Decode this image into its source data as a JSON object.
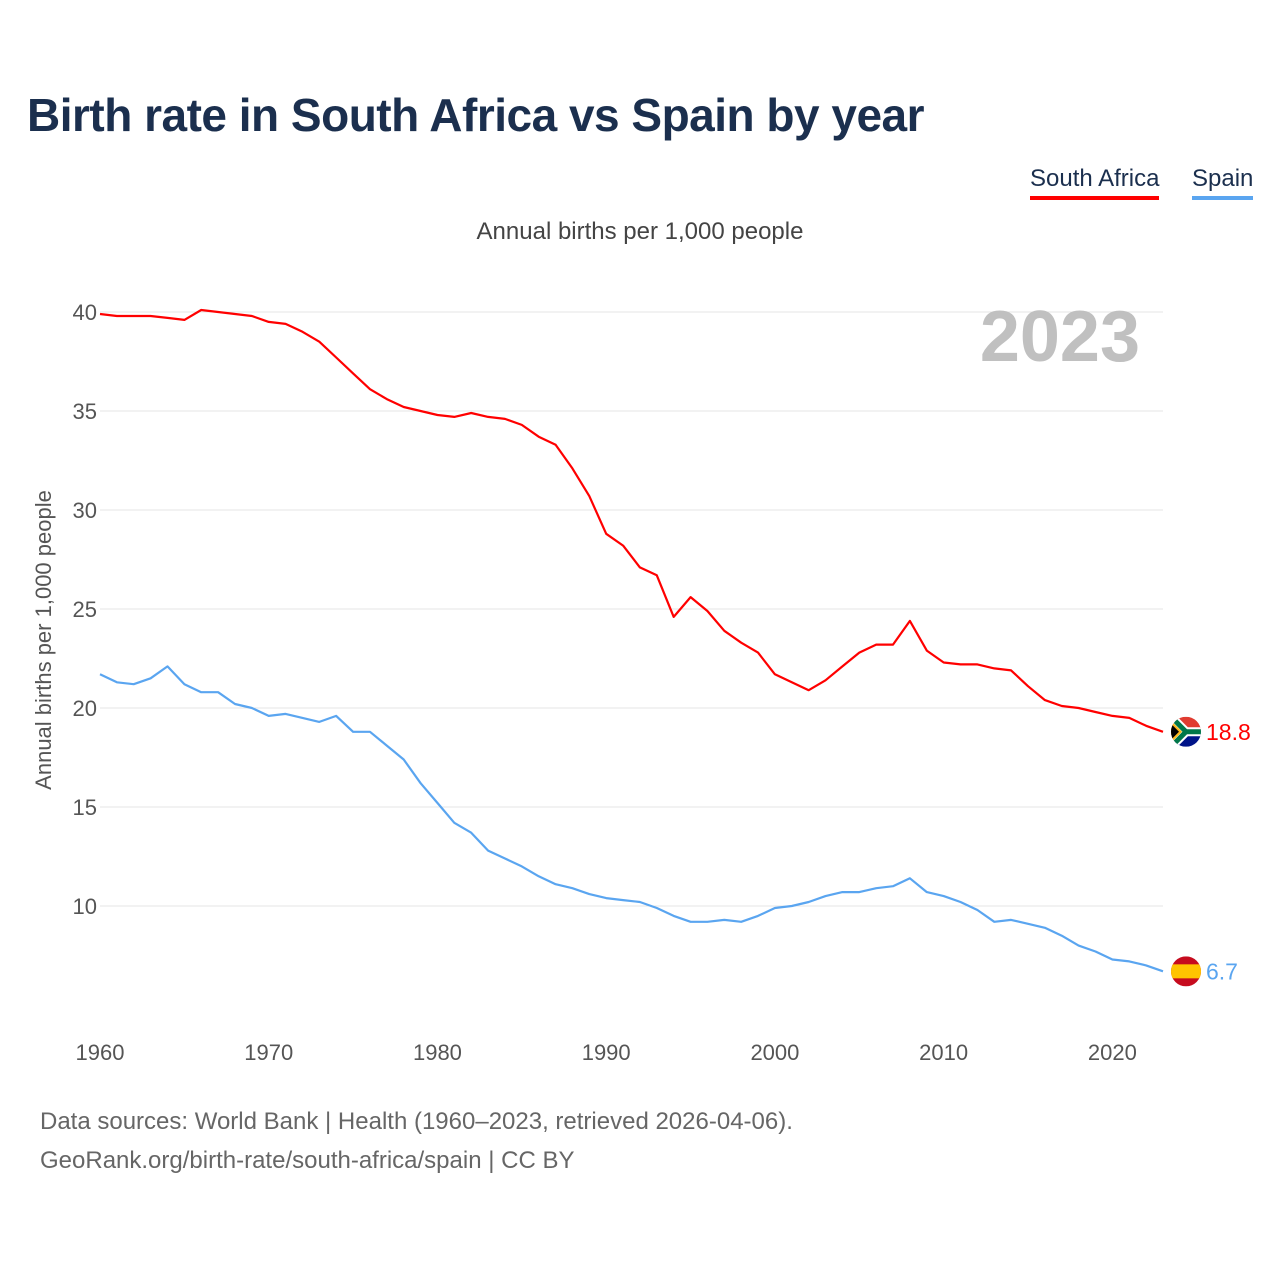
{
  "title": "Birth rate in South Africa vs Spain by year",
  "legend": [
    {
      "label": "South Africa",
      "color": "#ff0000"
    },
    {
      "label": "Spain",
      "color": "#5aa5f0"
    }
  ],
  "subtitle": "Annual births per 1,000 people",
  "footer": {
    "line1": "Data sources: World Bank | Health (1960–2023, retrieved 2026-04-06).",
    "line2": "GeoRank.org/birth-rate/south-africa/spain | CC BY"
  },
  "chart_data": {
    "type": "line",
    "title": "Birth rate in South Africa vs Spain by year",
    "ylabel": "Annual births per 1,000 people",
    "xlabel": "",
    "year_label": "2023",
    "xlim": [
      1960,
      2023
    ],
    "ylim": [
      5,
      42
    ],
    "xticks": [
      1960,
      1970,
      1980,
      1990,
      2000,
      2010,
      2020
    ],
    "yticks": [
      10,
      15,
      20,
      25,
      30,
      35,
      40
    ],
    "grid": true,
    "legend_position": "top-right",
    "x": [
      1960,
      1961,
      1962,
      1963,
      1964,
      1965,
      1966,
      1967,
      1968,
      1969,
      1970,
      1971,
      1972,
      1973,
      1974,
      1975,
      1976,
      1977,
      1978,
      1979,
      1980,
      1981,
      1982,
      1983,
      1984,
      1985,
      1986,
      1987,
      1988,
      1989,
      1990,
      1991,
      1992,
      1993,
      1994,
      1995,
      1996,
      1997,
      1998,
      1999,
      2000,
      2001,
      2002,
      2003,
      2004,
      2005,
      2006,
      2007,
      2008,
      2009,
      2010,
      2011,
      2012,
      2013,
      2014,
      2015,
      2016,
      2017,
      2018,
      2019,
      2020,
      2021,
      2022,
      2023
    ],
    "series": [
      {
        "name": "South Africa",
        "color": "#ff0000",
        "end_label": "18.8",
        "flag": "south-africa",
        "values": [
          39.9,
          39.8,
          39.8,
          39.8,
          39.7,
          39.6,
          40.1,
          40.0,
          39.9,
          39.8,
          39.5,
          39.4,
          39.0,
          38.5,
          37.7,
          36.9,
          36.1,
          35.6,
          35.2,
          35.0,
          34.8,
          34.7,
          34.9,
          34.7,
          34.6,
          34.3,
          33.7,
          33.3,
          32.1,
          30.7,
          28.8,
          28.2,
          27.1,
          26.7,
          24.6,
          25.6,
          24.9,
          23.9,
          23.3,
          22.8,
          21.7,
          21.3,
          20.9,
          21.4,
          22.1,
          22.8,
          23.2,
          23.2,
          24.4,
          22.9,
          22.3,
          22.2,
          22.2,
          22.0,
          21.9,
          21.1,
          20.4,
          20.1,
          20.0,
          19.8,
          19.6,
          19.5,
          19.1,
          18.8
        ]
      },
      {
        "name": "Spain",
        "color": "#5aa5f0",
        "end_label": "6.7",
        "flag": "spain",
        "values": [
          21.7,
          21.3,
          21.2,
          21.5,
          22.1,
          21.2,
          20.8,
          20.8,
          20.2,
          20.0,
          19.6,
          19.7,
          19.5,
          19.3,
          19.6,
          18.8,
          18.8,
          18.1,
          17.4,
          16.2,
          15.2,
          14.2,
          13.7,
          12.8,
          12.4,
          12.0,
          11.5,
          11.1,
          10.9,
          10.6,
          10.4,
          10.3,
          10.2,
          9.9,
          9.5,
          9.2,
          9.2,
          9.3,
          9.2,
          9.5,
          9.9,
          10.0,
          10.2,
          10.5,
          10.7,
          10.7,
          10.9,
          11.0,
          11.4,
          10.7,
          10.5,
          10.2,
          9.8,
          9.2,
          9.3,
          9.1,
          8.9,
          8.5,
          8.0,
          7.7,
          7.3,
          7.2,
          7.0,
          6.7
        ]
      }
    ]
  }
}
